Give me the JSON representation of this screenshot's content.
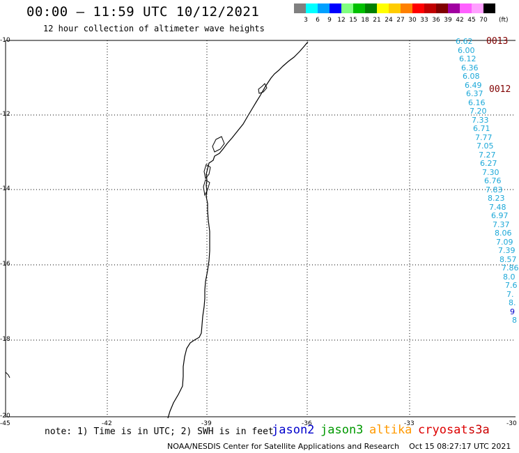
{
  "header": {
    "title": "00:00 – 11:59 UTC 10/12/2021",
    "subtitle": "12 hour collection of altimeter wave heights"
  },
  "legend": {
    "labels": [
      "3",
      "6",
      "9",
      "12",
      "15",
      "18",
      "21",
      "24",
      "27",
      "30",
      "33",
      "36",
      "39",
      "42",
      "45",
      "70"
    ],
    "unit": "(ft)",
    "colors": [
      "#808080",
      "#00ffff",
      "#00a0ff",
      "#0000ff",
      "#80ff80",
      "#00c000",
      "#008000",
      "#ffff00",
      "#ffcc00",
      "#ff8000",
      "#ff0000",
      "#c00000",
      "#800000",
      "#a000a0",
      "#ff60ff",
      "#ffa0ff",
      "#000000"
    ]
  },
  "axes": {
    "y_labels": [
      "-10",
      "-12",
      "-14",
      "-16",
      "-18",
      "-20"
    ],
    "x_labels": [
      "-45",
      "-42",
      "-39",
      "-36",
      "-33",
      "-30"
    ]
  },
  "passes": [
    {
      "label": "0013"
    },
    {
      "label": "0012"
    }
  ],
  "wave_heights": [
    "6.62",
    "6.00",
    "6.12",
    "6.36",
    "6.08",
    "6.49",
    "6.37",
    "6.16",
    "7.20",
    "7.33",
    "6.71",
    "7.77",
    "7.05",
    "7.27",
    "6.27",
    "7.30",
    "6.76",
    "7.83",
    "8.23",
    "7.48",
    "6.97",
    "7.37",
    "8.06",
    "7.09",
    "7.39",
    "8.57",
    "7.86",
    "8.0",
    "7.6",
    "7.",
    "8.",
    "9",
    "8"
  ],
  "footer": {
    "note": "note: 1) Time is in UTC; 2) SWH is in feet",
    "satellites": [
      {
        "name": "jason2",
        "color": "#0000cc"
      },
      {
        "name": "jason3",
        "color": "#009900"
      },
      {
        "name": "altika",
        "color": "#ff9900"
      },
      {
        "name": "cryosat",
        "color": "#dd0000"
      },
      {
        "name": "s3a",
        "color": "#cc0000"
      }
    ],
    "credit": "NOAA/NESDIS Center for Satellite Applications and Research    Oct 15 08:27:17 UTC 2021"
  }
}
